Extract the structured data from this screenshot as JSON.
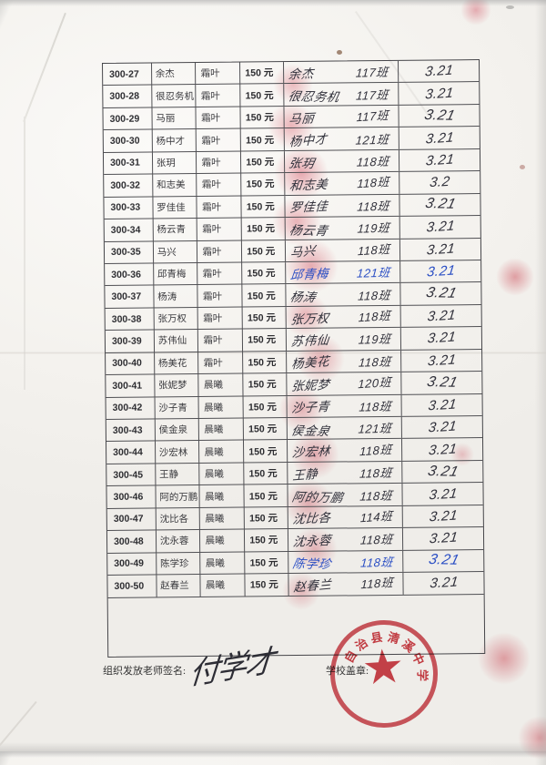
{
  "table": {
    "rows": [
      {
        "id": "300-27",
        "name": "余杰",
        "group": "霜叶",
        "amount": "150 元",
        "sig_name": "余杰",
        "sig_class": "117班",
        "date": "3.21",
        "ink": "dark"
      },
      {
        "id": "300-28",
        "name": "很忍务机",
        "group": "霜叶",
        "amount": "150 元",
        "sig_name": "很忍务机",
        "sig_class": "117班",
        "date": "3.21",
        "ink": "dark"
      },
      {
        "id": "300-29",
        "name": "马丽",
        "group": "霜叶",
        "amount": "150 元",
        "sig_name": "马丽",
        "sig_class": "117班",
        "date": "3.21",
        "ink": "dark"
      },
      {
        "id": "300-30",
        "name": "杨中才",
        "group": "霜叶",
        "amount": "150 元",
        "sig_name": "杨中才",
        "sig_class": "121班",
        "date": "3.21",
        "ink": "dark"
      },
      {
        "id": "300-31",
        "name": "张玥",
        "group": "霜叶",
        "amount": "150 元",
        "sig_name": "张玥",
        "sig_class": "118班",
        "date": "3.21",
        "ink": "dark"
      },
      {
        "id": "300-32",
        "name": "和志美",
        "group": "霜叶",
        "amount": "150 元",
        "sig_name": "和志美",
        "sig_class": "118班",
        "date": "3.2",
        "ink": "dark"
      },
      {
        "id": "300-33",
        "name": "罗佳佳",
        "group": "霜叶",
        "amount": "150 元",
        "sig_name": "罗佳佳",
        "sig_class": "118班",
        "date": "3.21",
        "ink": "dark"
      },
      {
        "id": "300-34",
        "name": "杨云青",
        "group": "霜叶",
        "amount": "150 元",
        "sig_name": "杨云青",
        "sig_class": "119班",
        "date": "3.21",
        "ink": "dark"
      },
      {
        "id": "300-35",
        "name": "马兴",
        "group": "霜叶",
        "amount": "150 元",
        "sig_name": "马兴",
        "sig_class": "118班",
        "date": "3.21",
        "ink": "dark"
      },
      {
        "id": "300-36",
        "name": "邱青梅",
        "group": "霜叶",
        "amount": "150 元",
        "sig_name": "邱青梅",
        "sig_class": "121班",
        "date": "3.21",
        "ink": "blue"
      },
      {
        "id": "300-37",
        "name": "杨涛",
        "group": "霜叶",
        "amount": "150 元",
        "sig_name": "杨涛",
        "sig_class": "118班",
        "date": "3.21",
        "ink": "dark"
      },
      {
        "id": "300-38",
        "name": "张万权",
        "group": "霜叶",
        "amount": "150 元",
        "sig_name": "张万权",
        "sig_class": "118班",
        "date": "3.21",
        "ink": "dark"
      },
      {
        "id": "300-39",
        "name": "苏伟仙",
        "group": "霜叶",
        "amount": "150 元",
        "sig_name": "苏伟仙",
        "sig_class": "119班",
        "date": "3.21",
        "ink": "dark"
      },
      {
        "id": "300-40",
        "name": "杨美花",
        "group": "霜叶",
        "amount": "150 元",
        "sig_name": "杨美花",
        "sig_class": "118班",
        "date": "3.21",
        "ink": "dark"
      },
      {
        "id": "300-41",
        "name": "张妮梦",
        "group": "晨曦",
        "amount": "150 元",
        "sig_name": "张妮梦",
        "sig_class": "120班",
        "date": "3.21",
        "ink": "dark"
      },
      {
        "id": "300-42",
        "name": "沙子青",
        "group": "晨曦",
        "amount": "150 元",
        "sig_name": "沙子青",
        "sig_class": "118班",
        "date": "3.21",
        "ink": "dark"
      },
      {
        "id": "300-43",
        "name": "侯金泉",
        "group": "晨曦",
        "amount": "150 元",
        "sig_name": "侯金泉",
        "sig_class": "121班",
        "date": "3.21",
        "ink": "dark"
      },
      {
        "id": "300-44",
        "name": "沙宏林",
        "group": "晨曦",
        "amount": "150 元",
        "sig_name": "沙宏林",
        "sig_class": "118班",
        "date": "3.21",
        "ink": "dark"
      },
      {
        "id": "300-45",
        "name": "王静",
        "group": "晨曦",
        "amount": "150 元",
        "sig_name": "王静",
        "sig_class": "118班",
        "date": "3.21",
        "ink": "dark"
      },
      {
        "id": "300-46",
        "name": "阿的万鹏",
        "group": "晨曦",
        "amount": "150 元",
        "sig_name": "阿的万鹏",
        "sig_class": "118班",
        "date": "3.21",
        "ink": "dark"
      },
      {
        "id": "300-47",
        "name": "沈比各",
        "group": "晨曦",
        "amount": "150 元",
        "sig_name": "沈比各",
        "sig_class": "114班",
        "date": "3.21",
        "ink": "dark"
      },
      {
        "id": "300-48",
        "name": "沈永蓉",
        "group": "晨曦",
        "amount": "150 元",
        "sig_name": "沈永蓉",
        "sig_class": "118班",
        "date": "3.21",
        "ink": "dark"
      },
      {
        "id": "300-49",
        "name": "陈学珍",
        "group": "晨曦",
        "amount": "150 元",
        "sig_name": "陈学珍",
        "sig_class": "118班",
        "date": "3.21",
        "ink": "blue"
      },
      {
        "id": "300-50",
        "name": "赵春兰",
        "group": "晨曦",
        "amount": "150 元",
        "sig_name": "赵春兰",
        "sig_class": "118班",
        "date": "3.21",
        "ink": "dark"
      }
    ]
  },
  "footer": {
    "teacher_sign_label": "组织发放老师签名:",
    "teacher_signature": "付学才",
    "school_seal_label": "学校盖章:"
  },
  "stamp": {
    "arc_text": "自治县清溪中学",
    "star": "★",
    "color": "#c72a34"
  },
  "colors": {
    "ink_dark": "#31313b",
    "ink_blue": "#2b4fc4",
    "stamp_red": "#c72a34",
    "smudge_pink": "#e79aa6"
  }
}
